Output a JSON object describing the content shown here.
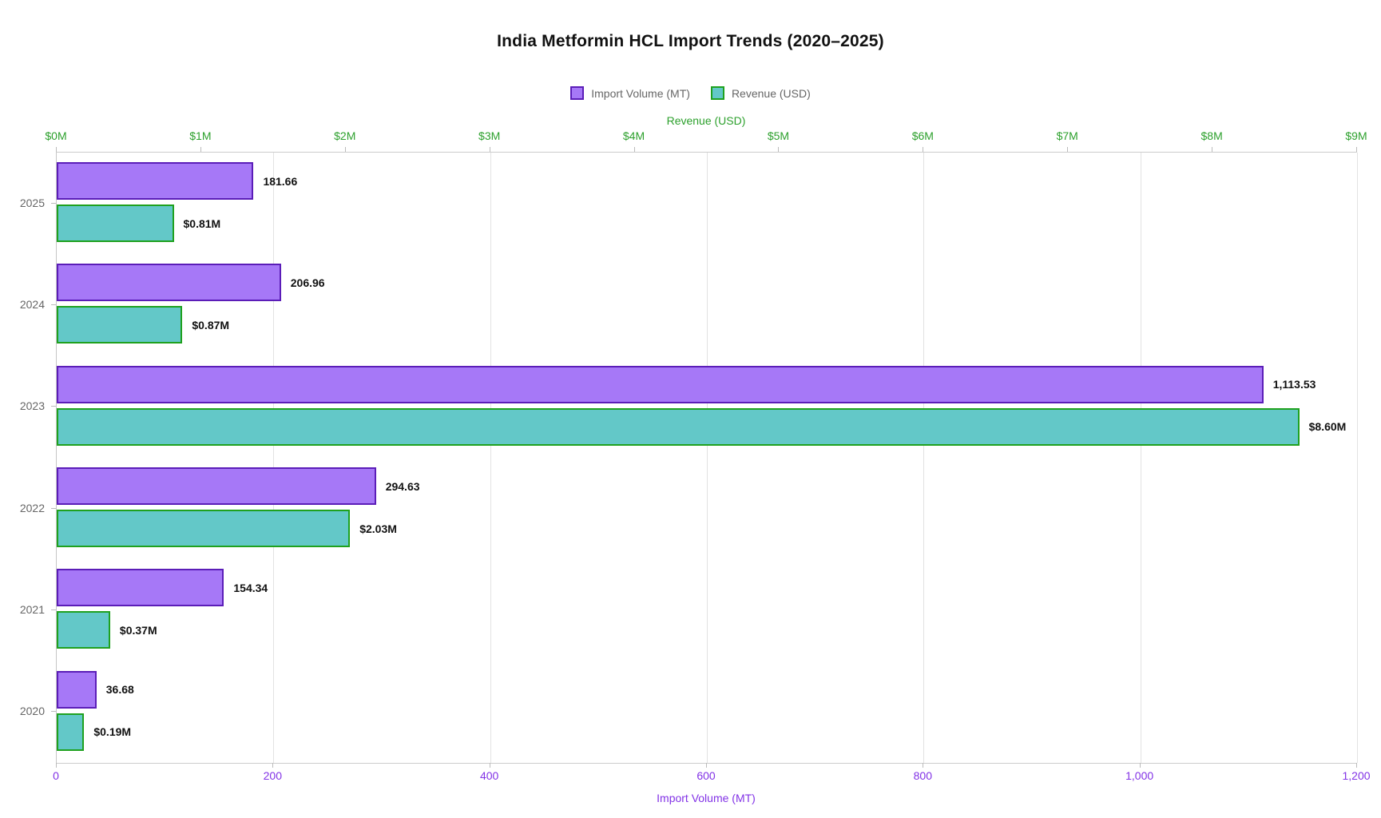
{
  "chart_data": {
    "type": "bar",
    "orientation": "horizontal",
    "title": "India Metformin HCL Import Trends (2020–2025)",
    "categories": [
      "2025",
      "2024",
      "2023",
      "2022",
      "2021",
      "2020"
    ],
    "series": [
      {
        "name": "Import Volume (MT)",
        "axis": "bottom",
        "values": [
          181.66,
          206.96,
          1113.53,
          294.63,
          154.34,
          36.68
        ],
        "value_labels": [
          "181.66",
          "206.96",
          "1,113.53",
          "294.63",
          "154.34",
          "36.68"
        ],
        "fill": "#a678f7",
        "border": "#5b1db8"
      },
      {
        "name": "Revenue (USD)",
        "axis": "top",
        "values": [
          0.81,
          0.87,
          8.6,
          2.03,
          0.37,
          0.19
        ],
        "value_labels": [
          "$0.81M",
          "$0.87M",
          "$8.60M",
          "$2.03M",
          "$0.37M",
          "$0.19M"
        ],
        "fill": "#63c8c8",
        "border": "#1fa11f"
      }
    ],
    "top_axis": {
      "title": "Revenue (USD)",
      "min": 0,
      "max": 9,
      "tick_labels": [
        "$0M",
        "$1M",
        "$2M",
        "$3M",
        "$4M",
        "$5M",
        "$6M",
        "$7M",
        "$8M",
        "$9M"
      ],
      "color": "#2ca02c"
    },
    "bottom_axis": {
      "title": "Import Volume (MT)",
      "min": 0,
      "max": 1200,
      "tick_labels": [
        "0",
        "200",
        "400",
        "600",
        "800",
        "1,000",
        "1,200"
      ],
      "color": "#8232e6"
    },
    "legend_position": "top",
    "grid": true
  },
  "legend": {
    "items": [
      {
        "label": "Import Volume (MT)",
        "fill": "#a678f7",
        "border": "#5b1db8"
      },
      {
        "label": "Revenue (USD)",
        "fill": "#63c8c8",
        "border": "#1fa11f"
      }
    ]
  },
  "colors": {
    "title_text": "#111111",
    "muted_text": "#666666",
    "grid": "#e2e2e2",
    "axis_line": "#cccccc"
  }
}
